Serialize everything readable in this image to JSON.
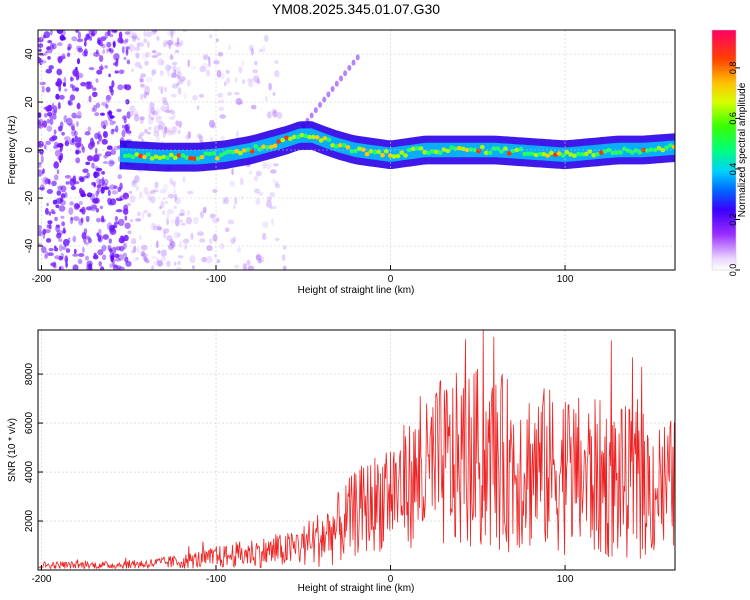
{
  "title": "YM08.2025.345.01.07.G30",
  "chart_data": [
    {
      "type": "heatmap",
      "xlabel": "Height of straight line (km)",
      "ylabel": "Frequency (Hz)",
      "xlim": [
        -202,
        163
      ],
      "ylim": [
        -50,
        50
      ],
      "xticks": [
        -200,
        -100,
        0,
        100
      ],
      "yticks": [
        -40,
        -20,
        0,
        20,
        40
      ],
      "colorbar": {
        "label": "Normalized spectral amplitude",
        "range": [
          0,
          0.95
        ],
        "ticks": [
          0,
          0.2,
          0.4,
          0.6,
          0.8
        ]
      },
      "ridge": {
        "description": "dominant frequency track",
        "x": [
          -155,
          -130,
          -110,
          -95,
          -80,
          -70,
          -60,
          -52,
          -45,
          -38,
          -30,
          -20,
          -10,
          0,
          10,
          20,
          40,
          60,
          80,
          100,
          115,
          130,
          145,
          163
        ],
        "y": [
          -2,
          -3,
          -3,
          -2,
          0,
          2,
          4,
          6,
          6,
          4,
          2,
          0,
          -1,
          -2,
          -1,
          0,
          0,
          0,
          -1,
          -2,
          -1,
          0,
          0,
          1
        ]
      }
    },
    {
      "type": "line",
      "xlabel": "Height of straight line (km)",
      "ylabel": "SNR (10 * v/v)",
      "xlim": [
        -202,
        163
      ],
      "ylim": [
        0,
        9800
      ],
      "xticks": [
        -200,
        -100,
        0,
        100
      ],
      "yticks": [
        2000,
        4000,
        6000,
        8000
      ],
      "color": "#ee2222",
      "envelope": {
        "x": [
          -202,
          -160,
          -140,
          -120,
          -100,
          -80,
          -60,
          -50,
          -40,
          -30,
          -20,
          -10,
          0,
          10,
          20,
          25,
          30,
          40,
          50,
          60,
          70,
          80,
          90,
          100,
          110,
          120,
          130,
          140,
          150,
          163
        ],
        "mid": [
          200,
          200,
          250,
          350,
          500,
          700,
          800,
          1000,
          1300,
          1700,
          2300,
          2700,
          3200,
          3500,
          3800,
          4200,
          4300,
          4400,
          4500,
          4400,
          4300,
          4200,
          4100,
          4000,
          3800,
          3700,
          3600,
          3500,
          3400,
          3300
        ],
        "amp": [
          150,
          150,
          200,
          300,
          450,
          600,
          700,
          900,
          1200,
          1500,
          1800,
          2000,
          2400,
          2600,
          3000,
          3500,
          3600,
          3700,
          3800,
          3700,
          3600,
          3500,
          3400,
          3400,
          3300,
          3300,
          3200,
          3100,
          3000,
          2900
        ]
      }
    }
  ]
}
